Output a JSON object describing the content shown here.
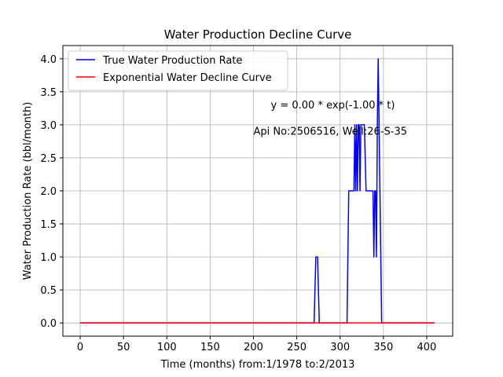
{
  "chart_data": {
    "type": "line",
    "title": "Water Production Decline Curve",
    "xlabel": "Time (months) from:1/1978 to:2/2013",
    "ylabel": "Water Production Rate (bbl/month)",
    "xlim": [
      -20,
      430
    ],
    "ylim": [
      -0.2,
      4.2
    ],
    "xticks": [
      0,
      50,
      100,
      150,
      200,
      250,
      300,
      350,
      400
    ],
    "yticks": [
      0.0,
      0.5,
      1.0,
      1.5,
      2.0,
      2.5,
      3.0,
      3.5,
      4.0
    ],
    "xtick_labels": [
      "0",
      "50",
      "100",
      "150",
      "200",
      "250",
      "300",
      "350",
      "400"
    ],
    "ytick_labels": [
      "0.0",
      "0.5",
      "1.0",
      "1.5",
      "2.0",
      "2.5",
      "3.0",
      "3.5",
      "4.0"
    ],
    "grid": true,
    "legend_position": "top-left",
    "series": [
      {
        "name": "True Water Production Rate",
        "color": "#0000ff",
        "x": [
          0,
          270,
          272,
          274,
          276,
          308,
          310,
          316,
          317,
          318,
          319,
          320,
          321,
          322,
          323,
          324,
          325,
          326,
          328,
          330,
          338,
          339,
          340,
          341,
          342,
          343,
          344,
          345,
          346,
          348,
          350,
          409
        ],
        "y": [
          0,
          0,
          1,
          1,
          0,
          0,
          2,
          2,
          3,
          2,
          3,
          2,
          3,
          3,
          2,
          3,
          3,
          3,
          3,
          2,
          2,
          1,
          2,
          2,
          1,
          3,
          4,
          3,
          2,
          0,
          0,
          0
        ]
      },
      {
        "name": "Exponential Water Decline Curve",
        "color": "#ff0000",
        "x": [
          0,
          409
        ],
        "y": [
          0,
          0
        ]
      }
    ],
    "annotations": [
      {
        "text": "y = 0.00 * exp(-1.00 * t)",
        "x": 220,
        "y": 3.25
      },
      {
        "text": "Api No:2506516, Well:26-S-35",
        "x": 200,
        "y": 2.85
      }
    ]
  }
}
